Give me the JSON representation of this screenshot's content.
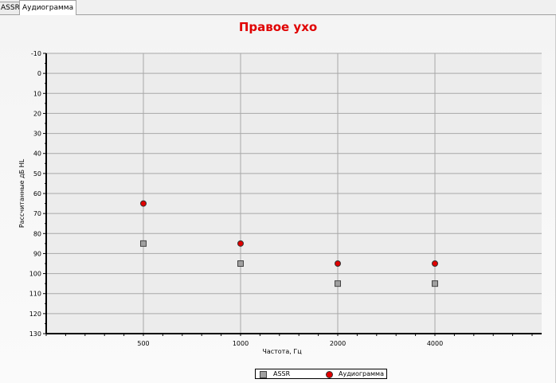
{
  "tabs": [
    {
      "label": "ASSR",
      "active": false
    },
    {
      "label": "Аудиограмма",
      "active": true
    }
  ],
  "chart_data": {
    "type": "scatter",
    "title": "Правое ухо",
    "xlabel": "Частота, Гц",
    "ylabel": "Рассчитанные дБ HL",
    "categories": [
      "500",
      "1000",
      "2000",
      "4000"
    ],
    "ylim": [
      -10,
      130
    ],
    "y_inverted": true,
    "yticks": [
      -10,
      0,
      10,
      20,
      30,
      40,
      50,
      60,
      70,
      80,
      90,
      100,
      110,
      120,
      130
    ],
    "grid": true,
    "legend": "bottom",
    "series": [
      {
        "name": "ASSR",
        "marker": "square",
        "color": "#a0a0a0",
        "values": [
          85,
          95,
          105,
          105
        ]
      },
      {
        "name": "Аудиограмма",
        "marker": "circle",
        "color": "#e00000",
        "values": [
          65,
          85,
          95,
          95
        ]
      }
    ]
  }
}
